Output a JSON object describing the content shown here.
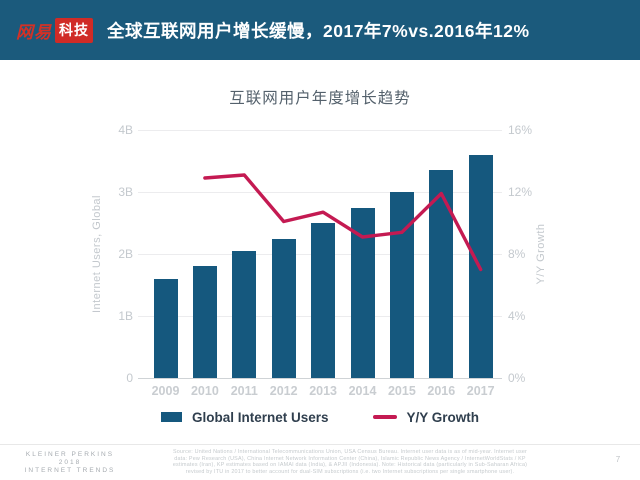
{
  "header": {
    "logo_brand": "网易",
    "logo_badge": "科技",
    "title": "全球互联网用户增长缓慢，2017年7%vs.2016年12%"
  },
  "chart_data": {
    "type": "bar",
    "title": "互联网用户年度增长趋势",
    "categories": [
      "2009",
      "2010",
      "2011",
      "2012",
      "2013",
      "2014",
      "2015",
      "2016",
      "2017"
    ],
    "series": [
      {
        "name": "Global Internet Users",
        "type": "bar",
        "axis": "left",
        "unit": "B",
        "color": "#15587e",
        "values": [
          1.6,
          1.8,
          2.05,
          2.25,
          2.5,
          2.75,
          3.0,
          3.35,
          3.6
        ]
      },
      {
        "name": "Y/Y Growth",
        "type": "line",
        "axis": "right",
        "unit": "%",
        "color": "#c41a52",
        "values": [
          null,
          12.9,
          13.1,
          10.1,
          10.7,
          9.1,
          9.4,
          11.9,
          7.0
        ]
      }
    ],
    "left_axis": {
      "label": "Internet Users, Global",
      "range": [
        0,
        4
      ],
      "ticks": [
        "0",
        "1B",
        "2B",
        "3B",
        "4B"
      ]
    },
    "right_axis": {
      "label": "Y/Y Growth",
      "range": [
        0,
        16
      ],
      "ticks": [
        "0%",
        "4%",
        "8%",
        "12%",
        "16%"
      ]
    },
    "grid": true,
    "legend_position": "bottom"
  },
  "footer": {
    "brand_line1": "KLEINER PERKINS",
    "brand_line2": "2018",
    "brand_line3": "INTERNET TRENDS",
    "source_lines": [
      "Source: United Nations / International Telecommunications Union, USA Census Bureau. Internet user data is as of mid-year. Internet user",
      "data: Pew Research (USA), China Internet Network Information Center (China), Islamic Republic News Agency / InternetWorldStats / KP",
      "estimates (Iran), KP estimates based on IAMAI data (India), & APJII (Indonesia). Note: Historical data (particularly in Sub-Saharan Africa)",
      "revised by ITU in 2017 to better account for dual-SIM subscriptions (i.e. two Internet subscriptions per single smartphone user)."
    ],
    "page_number": "7"
  }
}
